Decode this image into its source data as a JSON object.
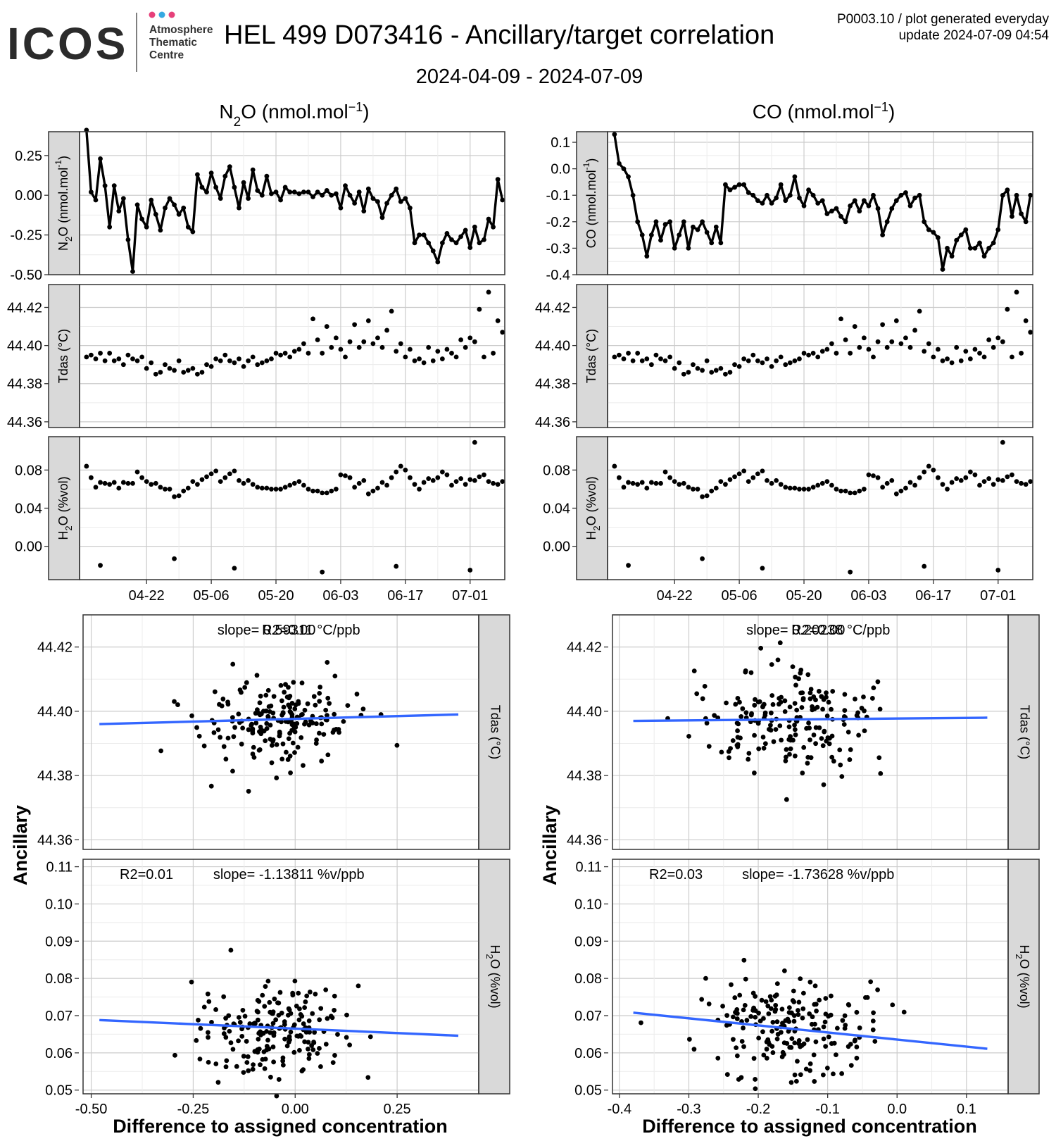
{
  "header": {
    "logo_text": "ICOS",
    "logo_sub": [
      "Atmosphere",
      "Thematic",
      "Centre"
    ],
    "logo_dot_colors": [
      "#e6417a",
      "#36a9e1",
      "#e6417a"
    ],
    "title": "HEL 499 D073416 - Ancillary/target correlation",
    "subtitle": "2024-04-09 - 2024-07-09",
    "meta_line1": "P0003.10 / plot generated everyday",
    "meta_line2": "update  2024-07-09 04:54"
  },
  "columns": [
    {
      "gas": "N2O",
      "title_main": "N",
      "title_sub": "2",
      "title_rest": "O (nmol.mol",
      "title_sup": "−1",
      "title_close": ")"
    },
    {
      "gas": "CO",
      "title_main": "CO (nmol.mol",
      "title_sub": "",
      "title_rest": "",
      "title_sup": "−1",
      "title_close": ")"
    }
  ],
  "facet_labels": {
    "n2o": "N2O (nmol.mol-1)",
    "co": "CO (nmol.mol-1)",
    "tdas": "Tdas (°C)",
    "h2o": "H2O (%vol)"
  },
  "axis_labels": {
    "scatter_x": "Difference to assigned concentration",
    "scatter_y": "Ancillary"
  },
  "timeseries_x_ticks": [
    "04-22",
    "05-06",
    "05-20",
    "06-03",
    "06-17",
    "07-01"
  ],
  "stats": {
    "n2o_tdas": {
      "text1": "R2=0.00",
      "text2": "slope= 0.59311 °C/ppb"
    },
    "n2o_h2o": {
      "text1": "R2=0.01",
      "text2": "slope= -1.13811 %v/ppb"
    },
    "co_tdas": {
      "text1": "R2=0.00",
      "text2": "slope= 0.20238 °C/ppb"
    },
    "co_h2o": {
      "text1": "R2=0.03",
      "text2": "slope= -1.73628 %v/ppb"
    }
  },
  "chart_data": [
    {
      "type": "line",
      "id": "n2o_ts",
      "facet": "N2O (nmol.mol-1)",
      "x_unit": "days since 2024-04-09",
      "ylim": [
        -0.5,
        0.4
      ],
      "yticks": [
        -0.5,
        -0.25,
        0,
        0.25
      ],
      "ytick_labels": [
        "-0.50",
        "-0.25",
        "0.00",
        "0.25"
      ],
      "x": [
        0,
        1,
        2,
        3,
        4,
        5,
        6,
        7,
        8,
        9,
        10,
        11,
        12,
        13,
        14,
        15,
        16,
        17,
        18,
        19,
        20,
        21,
        22,
        23,
        24,
        25,
        26,
        27,
        28,
        29,
        30,
        31,
        32,
        33,
        34,
        35,
        36,
        37,
        38,
        39,
        40,
        41,
        42,
        43,
        44,
        45,
        46,
        47,
        48,
        49,
        50,
        51,
        52,
        53,
        54,
        55,
        56,
        57,
        58,
        59,
        60,
        61,
        62,
        63,
        64,
        65,
        66,
        67,
        68,
        69,
        70,
        71,
        72,
        73,
        74,
        75,
        76,
        77,
        78,
        79,
        80,
        81,
        82,
        83,
        84,
        85,
        86,
        87,
        88,
        89,
        90
      ],
      "values": [
        0.41,
        0.02,
        -0.03,
        0.23,
        0.06,
        -0.2,
        0.06,
        -0.1,
        -0.02,
        -0.28,
        -0.48,
        -0.06,
        -0.15,
        -0.2,
        -0.03,
        -0.12,
        -0.22,
        -0.08,
        -0.02,
        -0.06,
        -0.12,
        -0.08,
        -0.2,
        -0.23,
        0.13,
        0.05,
        0.02,
        0.14,
        0.05,
        -0.02,
        0.12,
        0.18,
        0.05,
        -0.08,
        0.08,
        -0.02,
        0.16,
        0.03,
        0,
        0.12,
        0.01,
        0.02,
        -0.03,
        0.05,
        0.02,
        0.02,
        0.01,
        0.02,
        0.02,
        -0.01,
        0.02,
        0,
        0.03,
        0,
        0.01,
        -0.08,
        0.06,
        0,
        -0.05,
        0.02,
        -0.1,
        0.04,
        -0.02,
        -0.04,
        -0.14,
        -0.05,
        0,
        0.04,
        -0.04,
        -0.02,
        -0.08,
        -0.3,
        -0.25,
        -0.25,
        -0.3,
        -0.35,
        -0.42,
        -0.3,
        -0.24,
        -0.28,
        -0.3,
        -0.26,
        -0.22,
        -0.33,
        -0.2,
        -0.3,
        -0.28,
        -0.15,
        -0.2,
        0.1,
        -0.03
      ],
      "ylabel_vertical": "N2O (nmol.mol-1)"
    },
    {
      "type": "line",
      "id": "co_ts",
      "facet": "CO (nmol.mol-1)",
      "x_unit": "days since 2024-04-09",
      "ylim": [
        -0.4,
        0.14
      ],
      "yticks": [
        -0.4,
        -0.3,
        -0.2,
        -0.1,
        0,
        0.1
      ],
      "ytick_labels": [
        "-0.4",
        "-0.3",
        "-0.2",
        "-0.1",
        "0.0",
        "0.1"
      ],
      "values": [
        0.13,
        0.02,
        0.0,
        -0.03,
        -0.1,
        -0.2,
        -0.25,
        -0.33,
        -0.25,
        -0.2,
        -0.27,
        -0.21,
        -0.2,
        -0.3,
        -0.25,
        -0.2,
        -0.3,
        -0.22,
        -0.23,
        -0.2,
        -0.24,
        -0.28,
        -0.22,
        -0.28,
        -0.06,
        -0.08,
        -0.07,
        -0.06,
        -0.06,
        -0.09,
        -0.1,
        -0.12,
        -0.13,
        -0.1,
        -0.13,
        -0.11,
        -0.06,
        -0.12,
        -0.1,
        -0.03,
        -0.11,
        -0.14,
        -0.08,
        -0.1,
        -0.13,
        -0.12,
        -0.17,
        -0.16,
        -0.15,
        -0.18,
        -0.2,
        -0.14,
        -0.12,
        -0.16,
        -0.12,
        -0.14,
        -0.1,
        -0.15,
        -0.25,
        -0.2,
        -0.15,
        -0.12,
        -0.1,
        -0.09,
        -0.14,
        -0.11,
        -0.1,
        -0.2,
        -0.23,
        -0.24,
        -0.26,
        -0.38,
        -0.3,
        -0.33,
        -0.27,
        -0.25,
        -0.23,
        -0.3,
        -0.3,
        -0.28,
        -0.33,
        -0.3,
        -0.28,
        -0.23,
        -0.1,
        -0.08,
        -0.18,
        -0.1,
        -0.17,
        -0.2,
        -0.1
      ],
      "ylabel_vertical": "CO (nmol.mol-1)"
    },
    {
      "type": "scatter",
      "id": "tdas_ts",
      "facet": "Tdas (°C)",
      "ylim": [
        44.357,
        44.432
      ],
      "yticks": [
        44.36,
        44.38,
        44.4,
        44.42
      ],
      "ytick_labels": [
        "44.36",
        "44.38",
        "44.40",
        "44.42"
      ],
      "values": [
        44.394,
        44.395,
        44.393,
        44.396,
        44.392,
        44.396,
        44.392,
        44.393,
        44.39,
        44.395,
        44.393,
        44.392,
        44.394,
        44.388,
        44.391,
        44.385,
        44.386,
        44.39,
        44.388,
        44.387,
        44.392,
        44.386,
        44.387,
        44.388,
        44.385,
        44.386,
        44.39,
        44.389,
        44.393,
        44.392,
        44.395,
        44.392,
        44.391,
        44.393,
        44.389,
        44.392,
        44.394,
        44.39,
        44.391,
        44.392,
        44.393,
        44.396,
        44.395,
        44.396,
        44.394,
        44.397,
        44.398,
        44.401,
        44.396,
        44.414,
        44.403,
        44.396,
        44.41,
        44.399,
        44.404,
        44.398,
        44.394,
        44.402,
        44.411,
        44.399,
        44.402,
        44.413,
        44.401,
        44.404,
        44.399,
        44.408,
        44.418,
        44.397,
        44.401,
        44.394,
        44.398,
        44.392,
        44.393,
        44.391,
        44.399,
        44.392,
        44.397,
        44.393,
        44.398,
        44.396,
        44.394,
        44.403,
        44.399,
        44.404,
        44.402,
        44.419,
        44.394,
        44.428,
        44.396,
        44.413,
        44.407
      ]
    },
    {
      "type": "scatter",
      "id": "h2o_ts",
      "facet": "H2O (%vol)",
      "ylim": [
        -0.035,
        0.115
      ],
      "yticks": [
        0,
        0.04,
        0.08
      ],
      "ytick_labels": [
        "0.00",
        "0.04",
        "0.08"
      ],
      "values": [
        0.084,
        0.072,
        0.062,
        0.067,
        0.066,
        0.065,
        0.067,
        0.061,
        0.067,
        0.066,
        0.066,
        0.078,
        0.072,
        0.068,
        0.065,
        0.066,
        0.062,
        0.06,
        0.06,
        0.052,
        0.053,
        0.058,
        0.061,
        0.068,
        0.065,
        0.07,
        0.073,
        0.076,
        0.079,
        0.068,
        0.072,
        0.076,
        0.079,
        0.069,
        0.066,
        0.069,
        0.065,
        0.062,
        0.061,
        0.061,
        0.06,
        0.06,
        0.06,
        0.062,
        0.064,
        0.066,
        0.068,
        0.064,
        0.06,
        0.058,
        0.058,
        0.056,
        0.056,
        0.058,
        0.06,
        0.075,
        0.074,
        0.072,
        0.062,
        0.066,
        0.069,
        0.055,
        0.058,
        0.061,
        0.067,
        0.064,
        0.072,
        0.078,
        0.084,
        0.08,
        0.072,
        0.065,
        0.06,
        0.067,
        0.071,
        0.069,
        0.072,
        0.078,
        0.075,
        0.064,
        0.068,
        0.071,
        0.065,
        0.07,
        0.069,
        0.073,
        0.075,
        0.068,
        0.066,
        0.065,
        0.068
      ],
      "outliers": [
        {
          "day": 3,
          "value": -0.02
        },
        {
          "day": 19,
          "value": -0.013
        },
        {
          "day": 32,
          "value": -0.023
        },
        {
          "day": 51,
          "value": -0.027
        },
        {
          "day": 67,
          "value": -0.021
        },
        {
          "day": 83,
          "value": -0.025
        },
        {
          "day": 84,
          "value": 0.109
        }
      ]
    },
    {
      "type": "scatter",
      "id": "n2o_tdas",
      "x_label": "Difference to assigned concentration",
      "y_label": "Ancillary",
      "xlim": [
        -0.52,
        0.45
      ],
      "ylim": [
        44.357,
        44.43
      ],
      "xticks": [
        -0.5,
        -0.25,
        0,
        0.25
      ],
      "xtick_labels": [
        "-0.50",
        "-0.25",
        "0.00",
        "0.25"
      ],
      "yticks": [
        44.36,
        44.38,
        44.4,
        44.42
      ],
      "ytick_labels": [
        "44.36",
        "44.38",
        "44.40",
        "44.42"
      ],
      "fit": {
        "x": [
          -0.48,
          0.4
        ],
        "y": [
          44.396,
          44.399
        ]
      }
    },
    {
      "type": "scatter",
      "id": "n2o_h2o",
      "x_label": "Difference to assigned concentration",
      "y_label": "Ancillary",
      "xlim": [
        -0.52,
        0.45
      ],
      "ylim": [
        0.049,
        0.112
      ],
      "xticks": [
        -0.5,
        -0.25,
        0,
        0.25
      ],
      "xtick_labels": [
        "-0.50",
        "-0.25",
        "0.00",
        "0.25"
      ],
      "yticks": [
        0.05,
        0.06,
        0.07,
        0.08,
        0.09,
        0.1,
        0.11
      ],
      "ytick_labels": [
        "0.05",
        "0.06",
        "0.07",
        "0.08",
        "0.09",
        "0.10",
        "0.11"
      ],
      "fit": {
        "x": [
          -0.48,
          0.4
        ],
        "y": [
          0.0688,
          0.0646
        ]
      }
    },
    {
      "type": "scatter",
      "id": "co_tdas",
      "x_label": "Difference to assigned concentration",
      "y_label": "Ancillary",
      "xlim": [
        -0.41,
        0.16
      ],
      "ylim": [
        44.357,
        44.43
      ],
      "xticks": [
        -0.4,
        -0.3,
        -0.2,
        -0.1,
        0,
        0.1
      ],
      "xtick_labels": [
        "-0.4",
        "-0.3",
        "-0.2",
        "-0.1",
        "0.0",
        "0.1"
      ],
      "yticks": [
        44.36,
        44.38,
        44.4,
        44.42
      ],
      "ytick_labels": [
        "44.36",
        "44.38",
        "44.40",
        "44.42"
      ],
      "fit": {
        "x": [
          -0.38,
          0.13
        ],
        "y": [
          44.397,
          44.398
        ]
      }
    },
    {
      "type": "scatter",
      "id": "co_h2o",
      "x_label": "Difference to assigned concentration",
      "y_label": "Ancillary",
      "xlim": [
        -0.41,
        0.16
      ],
      "ylim": [
        0.049,
        0.112
      ],
      "xticks": [
        -0.4,
        -0.3,
        -0.2,
        -0.1,
        0,
        0.1
      ],
      "xtick_labels": [
        "-0.4",
        "-0.3",
        "-0.2",
        "-0.1",
        "0.0",
        "0.1"
      ],
      "yticks": [
        0.05,
        0.06,
        0.07,
        0.08,
        0.09,
        0.1,
        0.11
      ],
      "ytick_labels": [
        "0.05",
        "0.06",
        "0.07",
        "0.08",
        "0.09",
        "0.10",
        "0.11"
      ],
      "fit": {
        "x": [
          -0.38,
          0.13
        ],
        "y": [
          0.0708,
          0.0611
        ]
      }
    }
  ],
  "colors": {
    "fit_line": "#3366ff",
    "strip_bg": "#d9d9d9",
    "grid_major": "#cccccc",
    "grid_minor": "#ececec",
    "points": "#000000"
  }
}
